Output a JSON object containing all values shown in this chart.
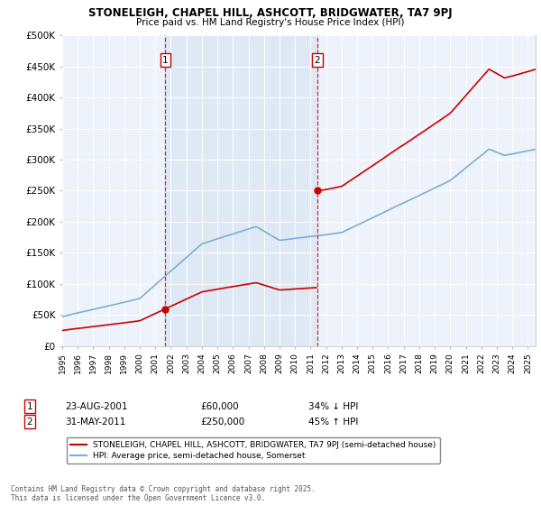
{
  "title1": "STONELEIGH, CHAPEL HILL, ASHCOTT, BRIDGWATER, TA7 9PJ",
  "title2": "Price paid vs. HM Land Registry's House Price Index (HPI)",
  "legend_line1": "STONELEIGH, CHAPEL HILL, ASHCOTT, BRIDGWATER, TA7 9PJ (semi-detached house)",
  "legend_line2": "HPI: Average price, semi-detached house, Somerset",
  "sale1_date": "23-AUG-2001",
  "sale1_price": "£60,000",
  "sale1_hpi": "34% ↓ HPI",
  "sale1_year": 2001.65,
  "sale1_value": 60000,
  "sale2_date": "31-MAY-2011",
  "sale2_price": "£250,000",
  "sale2_hpi": "45% ↑ HPI",
  "sale2_year": 2011.42,
  "sale2_value": 250000,
  "property_color": "#cc0000",
  "hpi_color": "#7bafd4",
  "shade_color": "#dce8f5",
  "vline_color": "#cc0000",
  "marker_color": "#cc0000",
  "background_color": "#eef2fa",
  "copyright_text": "Contains HM Land Registry data © Crown copyright and database right 2025.\nThis data is licensed under the Open Government Licence v3.0.",
  "ylim_max": 500000,
  "ylim_min": 0,
  "xmin": 1995,
  "xmax": 2025.5
}
